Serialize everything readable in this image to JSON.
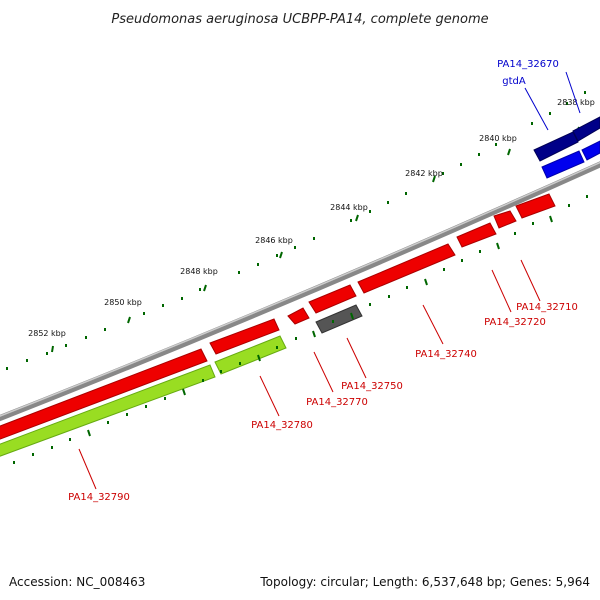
{
  "title": "Pseudomonas aeruginosa UCBPP-PA14, complete genome",
  "footer": {
    "accession": "Accession: NC_008463",
    "summary": "Topology: circular; Length: 6,537,648 bp; Genes: 5,964"
  },
  "scale_labels": [
    "2838 kbp",
    "2840 kbp",
    "2842 kbp",
    "2844 kbp",
    "2846 kbp",
    "2848 kbp",
    "2850 kbp",
    "2852 kbp"
  ],
  "gene_labels": [
    {
      "text": "PA14_32670",
      "color": "#0000cc"
    },
    {
      "text": "gtdA",
      "color": "#0000cc"
    },
    {
      "text": "PA14_32710",
      "color": "#cc0000"
    },
    {
      "text": "PA14_32720",
      "color": "#cc0000"
    },
    {
      "text": "PA14_32740",
      "color": "#cc0000"
    },
    {
      "text": "PA14_32750",
      "color": "#cc0000"
    },
    {
      "text": "PA14_32770",
      "color": "#cc0000"
    },
    {
      "text": "PA14_32780",
      "color": "#cc0000"
    },
    {
      "text": "PA14_32790",
      "color": "#cc0000"
    }
  ],
  "colors": {
    "backbone": "#888888",
    "gene_red": "#ee0000",
    "gene_navy": "#000088",
    "gene_blue": "#0000ee",
    "gene_grey": "#555555",
    "gene_green": "#99dd22",
    "tick": "#006600"
  }
}
